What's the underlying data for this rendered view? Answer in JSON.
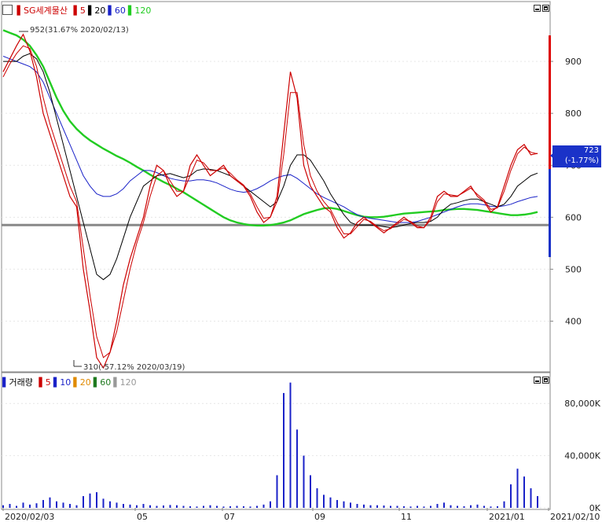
{
  "price_legend": {
    "name": "SG세계물산",
    "ma_items": [
      {
        "label": "5",
        "color": "#cc0000"
      },
      {
        "label": "20",
        "color": "#000000"
      },
      {
        "label": "60",
        "color": "#1a22c8"
      },
      {
        "label": "120",
        "color": "#22cc22"
      }
    ]
  },
  "volume_legend": {
    "name": "거래량",
    "ma_items": [
      {
        "label": "5",
        "color": "#cc0000"
      },
      {
        "label": "10",
        "color": "#1a22c8"
      },
      {
        "label": "20",
        "color": "#e08a00"
      },
      {
        "label": "60",
        "color": "#1f7a1f"
      },
      {
        "label": "120",
        "color": "#999999"
      }
    ]
  },
  "annotations": {
    "high": "952(31.67% 2020/02/13)",
    "low": "310(-57.12% 2020/03/19)"
  },
  "current_price": {
    "value": "723",
    "change": "(-1.77%)"
  },
  "x_ticks": [
    "2020/02/03",
    "05",
    "07",
    "09",
    "11",
    "2021/01",
    "2021/02/10"
  ],
  "chart_data": [
    {
      "type": "line",
      "title": "SG세계물산",
      "ylim": [
        310,
        1000
      ],
      "y_ticks": [
        400,
        500,
        600,
        700,
        800,
        900
      ],
      "reference_line": 585,
      "high": {
        "value": 952,
        "label": "952(31.67% 2020/02/13)"
      },
      "low": {
        "value": 310,
        "label": "310(-57.12% 2020/03/19)"
      },
      "x_ticks": [
        "2020/02/03",
        "05",
        "07",
        "09",
        "11",
        "2021/01"
      ],
      "series": [
        {
          "name": "price",
          "color": "#cc0000",
          "values": [
            880,
            905,
            930,
            952,
            920,
            870,
            800,
            760,
            720,
            680,
            640,
            620,
            500,
            420,
            330,
            310,
            340,
            400,
            470,
            520,
            560,
            600,
            660,
            700,
            690,
            660,
            640,
            650,
            700,
            720,
            700,
            680,
            690,
            700,
            680,
            670,
            660,
            640,
            610,
            590,
            600,
            640,
            760,
            880,
            830,
            700,
            660,
            640,
            620,
            610,
            580,
            560,
            570,
            590,
            600,
            590,
            580,
            570,
            580,
            590,
            600,
            590,
            580,
            580,
            600,
            640,
            650,
            640,
            640,
            650,
            660,
            640,
            630,
            610,
            620,
            660,
            700,
            730,
            740,
            720,
            723
          ]
        },
        {
          "name": "5",
          "color": "#cc0000",
          "values": [
            870,
            895,
            915,
            930,
            925,
            890,
            830,
            780,
            740,
            700,
            660,
            630,
            540,
            450,
            370,
            330,
            340,
            380,
            440,
            500,
            550,
            590,
            640,
            680,
            690,
            670,
            650,
            650,
            680,
            710,
            705,
            690,
            690,
            695,
            685,
            672,
            662,
            645,
            620,
            598,
            600,
            630,
            720,
            840,
            840,
            740,
            680,
            650,
            630,
            615,
            590,
            568,
            568,
            582,
            596,
            592,
            582,
            574,
            578,
            587,
            596,
            592,
            583,
            580,
            595,
            630,
            645,
            643,
            641,
            648,
            656,
            644,
            633,
            615,
            618,
            650,
            690,
            722,
            735,
            725,
            722
          ]
        },
        {
          "name": "20",
          "color": "#000000",
          "values": [
            900,
            900,
            900,
            910,
            915,
            905,
            880,
            840,
            790,
            740,
            690,
            640,
            590,
            540,
            490,
            480,
            490,
            520,
            560,
            600,
            630,
            660,
            670,
            680,
            682,
            684,
            680,
            676,
            680,
            690,
            693,
            692,
            690,
            685,
            680,
            670,
            660,
            650,
            640,
            630,
            620,
            630,
            660,
            700,
            720,
            720,
            710,
            690,
            670,
            645,
            625,
            605,
            590,
            585,
            585,
            585,
            584,
            582,
            580,
            582,
            585,
            588,
            590,
            590,
            592,
            600,
            615,
            625,
            628,
            632,
            635,
            635,
            630,
            625,
            620,
            625,
            640,
            660,
            670,
            680,
            685
          ]
        },
        {
          "name": "60",
          "color": "#1a22c8",
          "values": [
            910,
            905,
            900,
            895,
            890,
            880,
            860,
            830,
            800,
            770,
            740,
            710,
            680,
            660,
            645,
            640,
            640,
            645,
            655,
            670,
            680,
            690,
            690,
            686,
            680,
            675,
            672,
            670,
            670,
            672,
            672,
            670,
            666,
            660,
            654,
            650,
            648,
            650,
            655,
            662,
            670,
            676,
            680,
            682,
            675,
            665,
            655,
            645,
            638,
            632,
            626,
            620,
            612,
            605,
            600,
            598,
            596,
            594,
            592,
            590,
            590,
            590,
            592,
            596,
            600,
            605,
            610,
            615,
            620,
            624,
            626,
            626,
            624,
            621,
            620,
            622,
            625,
            630,
            634,
            638,
            640
          ]
        },
        {
          "name": "120",
          "color": "#22cc22",
          "values": [
            960,
            955,
            950,
            942,
            930,
            912,
            890,
            860,
            830,
            805,
            785,
            770,
            758,
            748,
            740,
            732,
            725,
            718,
            712,
            705,
            697,
            690,
            682,
            675,
            668,
            662,
            655,
            648,
            640,
            632,
            624,
            616,
            608,
            600,
            594,
            590,
            587,
            585,
            584,
            584,
            585,
            587,
            590,
            594,
            600,
            606,
            610,
            614,
            617,
            618,
            616,
            612,
            608,
            604,
            601,
            600,
            600,
            601,
            603,
            605,
            607,
            608,
            609,
            610,
            611,
            612,
            614,
            615,
            616,
            616,
            615,
            614,
            612,
            610,
            608,
            606,
            604,
            604,
            605,
            607,
            610
          ]
        }
      ]
    },
    {
      "type": "bar",
      "title": "거래량",
      "ylim": [
        0,
        100000
      ],
      "y_ticks": [
        "0K",
        "40,000K",
        "80,000K"
      ],
      "series": [
        {
          "name": "volume",
          "color": "#1a22c8",
          "values": [
            2000,
            3000,
            1500,
            4000,
            2500,
            3500,
            6000,
            8000,
            5000,
            4000,
            3000,
            2000,
            9000,
            11000,
            12000,
            7000,
            5000,
            4000,
            3000,
            2500,
            2000,
            3000,
            2000,
            1500,
            1800,
            2200,
            2000,
            1500,
            1200,
            1000,
            1500,
            2000,
            1500,
            1000,
            1200,
            1500,
            1200,
            1000,
            1500,
            2500,
            5000,
            25000,
            88000,
            96000,
            60000,
            40000,
            25000,
            15000,
            10000,
            8000,
            6000,
            5000,
            4000,
            3000,
            2500,
            2000,
            2000,
            1800,
            1500,
            1500,
            1200,
            1000,
            1500,
            1000,
            1500,
            3000,
            4000,
            2000,
            1500,
            1200,
            2000,
            2500,
            1500,
            1000,
            1200,
            5000,
            18000,
            30000,
            24000,
            15000,
            9000
          ]
        }
      ]
    }
  ]
}
